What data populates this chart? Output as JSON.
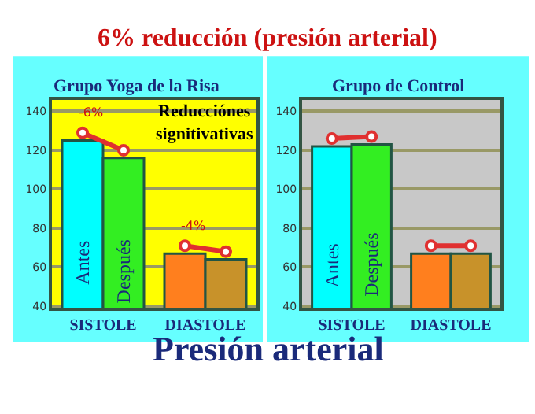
{
  "chart_data": [
    {
      "type": "bar",
      "title": "6% reducción (presión arterial)",
      "subtitle": "Grupo Yoga de la Risa",
      "categories": [
        "SISTOLE",
        "DIASTOLE"
      ],
      "ylim": [
        39,
        146
      ],
      "yticks": [
        40,
        60,
        80,
        100,
        120,
        140
      ],
      "grid": "y",
      "legend": false,
      "marker": "circle",
      "series": [
        {
          "name": "Antes",
          "colors": [
            "#00ffff",
            "#ff7f1e"
          ],
          "values": [
            125,
            67
          ]
        },
        {
          "name": "Después",
          "colors": [
            "#33ee22",
            "#c8922a"
          ],
          "values": [
            116,
            64
          ]
        }
      ],
      "annotations": [
        "-6%",
        "-4%",
        "Reducciónes signitivativas",
        "Presión arterial"
      ]
    },
    {
      "type": "bar",
      "subtitle": "Grupo de Control",
      "categories": [
        "SISTOLE",
        "DIASTOLE"
      ],
      "ylim": [
        39,
        146
      ],
      "yticks": [
        40,
        60,
        80,
        100,
        120,
        140
      ],
      "grid": "y",
      "legend": false,
      "marker": "circle",
      "series": [
        {
          "name": "Antes",
          "colors": [
            "#00ffff",
            "#ff7f1e"
          ],
          "values": [
            122,
            67
          ]
        },
        {
          "name": "Después",
          "colors": [
            "#33ee22",
            "#c8922a"
          ],
          "values": [
            123,
            67
          ]
        }
      ]
    }
  ]
}
